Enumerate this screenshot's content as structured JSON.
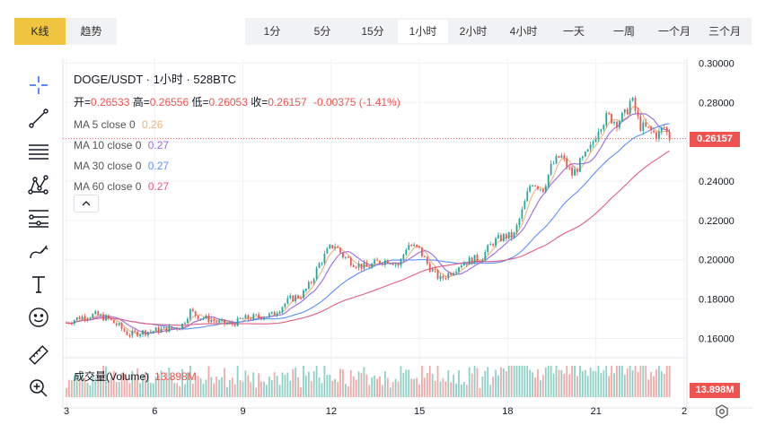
{
  "top_tabs": [
    {
      "label": "K线",
      "active": true
    },
    {
      "label": "趋势",
      "active": false
    }
  ],
  "intervals": [
    {
      "label": "1分"
    },
    {
      "label": "5分"
    },
    {
      "label": "15分"
    },
    {
      "label": "1小时",
      "active": true
    },
    {
      "label": "2小时"
    },
    {
      "label": "4小时"
    },
    {
      "label": "一天"
    },
    {
      "label": "一周"
    },
    {
      "label": "一个月"
    },
    {
      "label": "三个月"
    }
  ],
  "toolbar": {
    "icons": [
      "crosshair-icon",
      "trend-line-icon",
      "horizontal-lines-icon",
      "pattern-icon",
      "fib-levels-icon",
      "brush-icon",
      "text-icon",
      "emoji-icon",
      "ruler-icon",
      "zoom-in-icon"
    ]
  },
  "legend": {
    "title": "DOGE/USDT · 1小时 · 528BTC",
    "ohlc": {
      "open_label": "开=",
      "open": "0.26533",
      "high_label": "高=",
      "high": "0.26556",
      "low_label": "低=",
      "low": "0.26053",
      "close_label": "收=",
      "close": "0.26157",
      "change": "-0.00375 (-1.41%)"
    },
    "ma": [
      {
        "label": "MA 5 close 0",
        "value": "0.26",
        "color": "#f0b27a"
      },
      {
        "label": "MA 10 close 0",
        "value": "0.27",
        "color": "#9c6ade"
      },
      {
        "label": "MA 30 close 0",
        "value": "0.27",
        "color": "#5b8ff9"
      },
      {
        "label": "MA 60 close 0",
        "value": "0.27",
        "color": "#e05c8a"
      }
    ]
  },
  "volume": {
    "label": "成交量(Volume)",
    "value": "13.898M"
  },
  "price_tag": "0.26157",
  "volume_tag": "13.898M",
  "colors": {
    "up": "#26a69a",
    "down": "#ef5350",
    "accent": "#f0c43f"
  },
  "chart_data": {
    "type": "candlestick",
    "y_ticks": [
      "0.30000",
      "0.28000",
      "0.26000",
      "0.24000",
      "0.22000",
      "0.20000",
      "0.18000",
      "0.16000"
    ],
    "y_values": [
      0.3,
      0.28,
      0.26,
      0.24,
      0.22,
      0.2,
      0.18,
      0.16
    ],
    "ylim": [
      0.152,
      0.302
    ],
    "x_ticks": [
      "3",
      "6",
      "9",
      "12",
      "15",
      "18",
      "21",
      "2"
    ],
    "x_tick_values": [
      3,
      6,
      9,
      12,
      15,
      18,
      21,
      24
    ],
    "xlim": [
      3,
      24
    ],
    "current_price": 0.26157,
    "close_path": [
      [
        3.0,
        0.168
      ],
      [
        3.5,
        0.171
      ],
      [
        4.0,
        0.172
      ],
      [
        4.4,
        0.17
      ],
      [
        4.8,
        0.166
      ],
      [
        5.1,
        0.162
      ],
      [
        5.5,
        0.163
      ],
      [
        6.0,
        0.164
      ],
      [
        6.5,
        0.165
      ],
      [
        6.9,
        0.166
      ],
      [
        7.2,
        0.174
      ],
      [
        7.5,
        0.171
      ],
      [
        7.8,
        0.17
      ],
      [
        8.2,
        0.168
      ],
      [
        8.6,
        0.167
      ],
      [
        9.0,
        0.17
      ],
      [
        9.5,
        0.171
      ],
      [
        10.0,
        0.172
      ],
      [
        10.3,
        0.176
      ],
      [
        10.6,
        0.18
      ],
      [
        11.0,
        0.182
      ],
      [
        11.3,
        0.188
      ],
      [
        11.6,
        0.198
      ],
      [
        11.9,
        0.205
      ],
      [
        12.1,
        0.208
      ],
      [
        12.4,
        0.202
      ],
      [
        12.8,
        0.198
      ],
      [
        13.2,
        0.196
      ],
      [
        13.6,
        0.199
      ],
      [
        14.0,
        0.2
      ],
      [
        14.3,
        0.197
      ],
      [
        14.6,
        0.208
      ],
      [
        15.0,
        0.205
      ],
      [
        15.3,
        0.197
      ],
      [
        15.7,
        0.19
      ],
      [
        16.0,
        0.193
      ],
      [
        16.4,
        0.198
      ],
      [
        16.8,
        0.2
      ],
      [
        17.1,
        0.201
      ],
      [
        17.5,
        0.209
      ],
      [
        17.9,
        0.212
      ],
      [
        18.2,
        0.212
      ],
      [
        18.5,
        0.225
      ],
      [
        18.8,
        0.24
      ],
      [
        19.2,
        0.236
      ],
      [
        19.5,
        0.248
      ],
      [
        19.8,
        0.253
      ],
      [
        20.2,
        0.243
      ],
      [
        20.5,
        0.25
      ],
      [
        20.8,
        0.256
      ],
      [
        21.1,
        0.268
      ],
      [
        21.4,
        0.273
      ],
      [
        21.7,
        0.27
      ],
      [
        22.0,
        0.274
      ],
      [
        22.2,
        0.282
      ],
      [
        22.5,
        0.268
      ],
      [
        22.8,
        0.266
      ],
      [
        23.1,
        0.263
      ],
      [
        23.3,
        0.268
      ],
      [
        23.5,
        0.262
      ]
    ]
  }
}
